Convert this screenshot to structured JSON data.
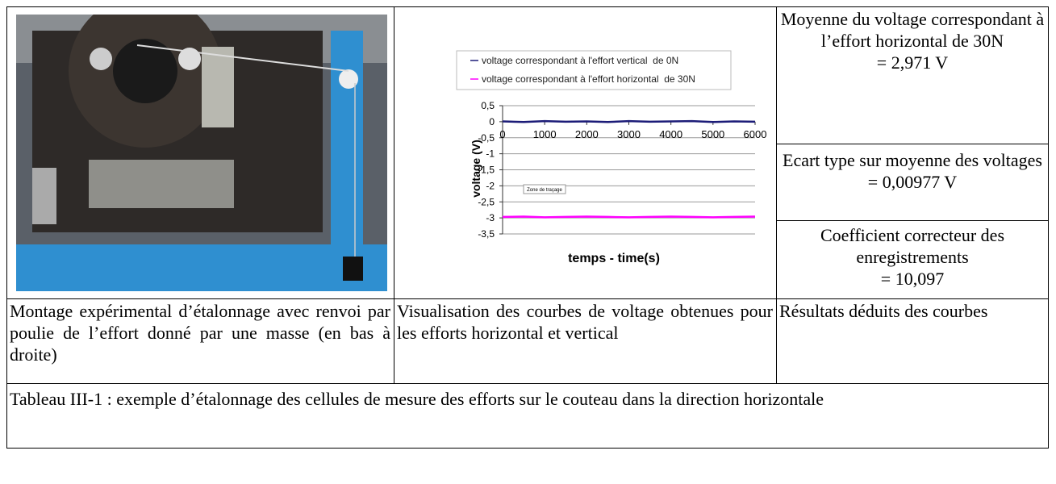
{
  "photo_caption": "Montage expérimental d’étalonnage avec renvoi par poulie de l’effort donné par une masse (en bas à droite)",
  "chart_caption": "Visualisation des courbes de voltage obtenues pour les efforts horizontal et vertical",
  "results_caption": "Résultats déduits des courbes",
  "results": [
    {
      "label": "Moyenne du voltage correspondant à l’effort horizontal de 30N",
      "value": "= 2,971 V"
    },
    {
      "label": "Ecart type sur moyenne des voltages",
      "value": "= 0,00977 V"
    },
    {
      "label": "Coefficient correcteur des enregistrements",
      "value": "= 10,097"
    }
  ],
  "table_caption": "Tableau III-1 : exemple d’étalonnage des cellules de mesure des efforts sur le couteau dans la direction horizontale",
  "chart": {
    "type": "line",
    "x_label": "temps - time(s)",
    "y_label": "voltage (V)",
    "annotation": "Zone de traçage",
    "x": [
      0,
      500,
      1000,
      1500,
      2000,
      2500,
      3000,
      3500,
      4000,
      4500,
      5000,
      5500,
      6000
    ],
    "series": [
      {
        "name": "voltage correspondant à l'effort vertical  de 0N",
        "color": "#1c1c78",
        "values": [
          0.01,
          -0.01,
          0.02,
          0,
          0.01,
          -0.01,
          0.02,
          0,
          0.01,
          0.02,
          -0.01,
          0.01,
          0
        ]
      },
      {
        "name": "voltage correspondant à l'effort horizontal  de 30N",
        "color": "#ff00ff",
        "values": [
          -2.97,
          -2.96,
          -2.98,
          -2.97,
          -2.96,
          -2.97,
          -2.98,
          -2.97,
          -2.96,
          -2.97,
          -2.98,
          -2.97,
          -2.96
        ]
      }
    ],
    "xlim": [
      0,
      6000
    ],
    "xticks": [
      0,
      1000,
      2000,
      3000,
      4000,
      5000,
      6000
    ],
    "ylim": [
      -3.5,
      0.5
    ],
    "yticks": [
      {
        "value": 0.5,
        "label": "0,5"
      },
      0,
      {
        "value": -0.5,
        "label": "-0,5"
      },
      -1,
      {
        "value": -1.5,
        "label": "-1,5"
      },
      -2,
      {
        "value": -2.5,
        "label": "-2,5"
      },
      -3,
      {
        "value": -3.5,
        "label": "-3,5"
      }
    ],
    "grid": true
  }
}
